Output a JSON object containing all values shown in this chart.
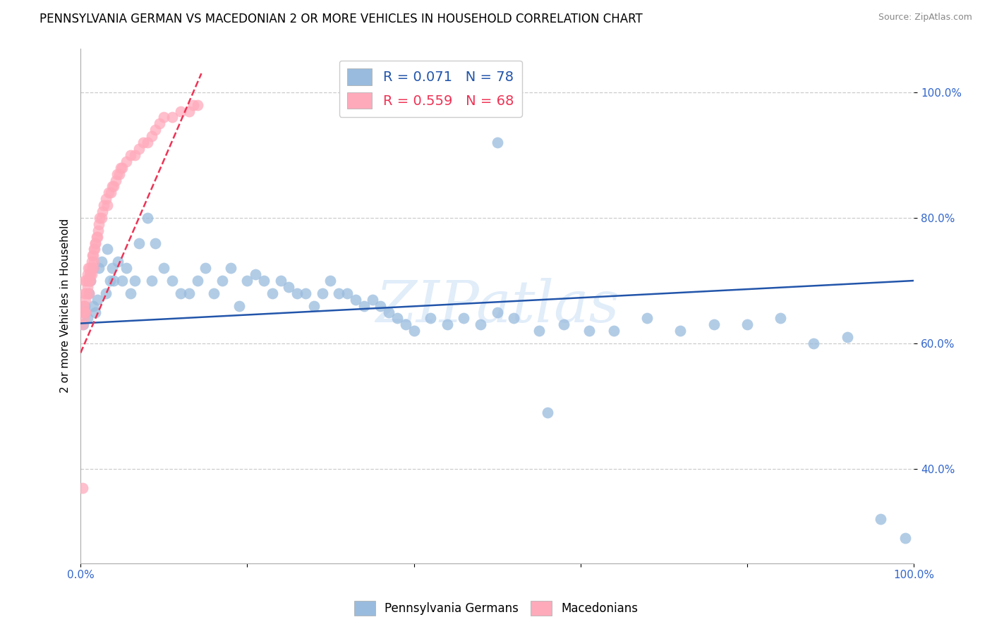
{
  "title": "PENNSYLVANIA GERMAN VS MACEDONIAN 2 OR MORE VEHICLES IN HOUSEHOLD CORRELATION CHART",
  "source": "Source: ZipAtlas.com",
  "ylabel": "2 or more Vehicles in Household",
  "watermark": "ZIPatlas",
  "legend_blue": {
    "R": "0.071",
    "N": "78",
    "label": "Pennsylvania Germans"
  },
  "legend_pink": {
    "R": "0.559",
    "N": "68",
    "label": "Macedonians"
  },
  "xlim": [
    0,
    1.0
  ],
  "ylim": [
    0.25,
    1.07
  ],
  "xticks": [
    0.0,
    0.2,
    0.4,
    0.6,
    0.8,
    1.0
  ],
  "yticks": [
    0.4,
    0.6,
    0.8,
    1.0
  ],
  "xtick_labels": [
    "0.0%",
    "",
    "",
    "",
    "",
    "100.0%"
  ],
  "ytick_labels": [
    "40.0%",
    "60.0%",
    "80.0%",
    "100.0%"
  ],
  "dot_color_blue": "#99BBDD",
  "dot_color_pink": "#FFAABB",
  "line_color_blue": "#2255AA",
  "line_color_pink": "#EE3355",
  "title_fontsize": 12,
  "axis_fontsize": 11,
  "tick_fontsize": 11,
  "blue_scatter_x": [
    0.003,
    0.005,
    0.006,
    0.008,
    0.01,
    0.012,
    0.015,
    0.015,
    0.018,
    0.02,
    0.022,
    0.025,
    0.03,
    0.032,
    0.035,
    0.038,
    0.04,
    0.045,
    0.05,
    0.055,
    0.06,
    0.065,
    0.07,
    0.08,
    0.085,
    0.09,
    0.1,
    0.11,
    0.12,
    0.13,
    0.14,
    0.15,
    0.16,
    0.17,
    0.18,
    0.19,
    0.2,
    0.21,
    0.22,
    0.23,
    0.24,
    0.25,
    0.26,
    0.27,
    0.28,
    0.29,
    0.3,
    0.31,
    0.32,
    0.33,
    0.34,
    0.35,
    0.36,
    0.37,
    0.38,
    0.39,
    0.4,
    0.42,
    0.44,
    0.46,
    0.48,
    0.5,
    0.52,
    0.55,
    0.58,
    0.61,
    0.64,
    0.68,
    0.72,
    0.76,
    0.8,
    0.84,
    0.88,
    0.92,
    0.96,
    0.99,
    0.5,
    0.56
  ],
  "blue_scatter_y": [
    0.63,
    0.66,
    0.65,
    0.64,
    0.68,
    0.7,
    0.72,
    0.66,
    0.65,
    0.67,
    0.72,
    0.73,
    0.68,
    0.75,
    0.7,
    0.72,
    0.7,
    0.73,
    0.7,
    0.72,
    0.68,
    0.7,
    0.76,
    0.8,
    0.7,
    0.76,
    0.72,
    0.7,
    0.68,
    0.68,
    0.7,
    0.72,
    0.68,
    0.7,
    0.72,
    0.66,
    0.7,
    0.71,
    0.7,
    0.68,
    0.7,
    0.69,
    0.68,
    0.68,
    0.66,
    0.68,
    0.7,
    0.68,
    0.68,
    0.67,
    0.66,
    0.67,
    0.66,
    0.65,
    0.64,
    0.63,
    0.62,
    0.64,
    0.63,
    0.64,
    0.63,
    0.65,
    0.64,
    0.62,
    0.63,
    0.62,
    0.62,
    0.64,
    0.62,
    0.63,
    0.63,
    0.64,
    0.6,
    0.61,
    0.32,
    0.29,
    0.92,
    0.49
  ],
  "pink_scatter_x": [
    0.002,
    0.003,
    0.003,
    0.004,
    0.004,
    0.005,
    0.005,
    0.005,
    0.006,
    0.006,
    0.007,
    0.007,
    0.008,
    0.008,
    0.009,
    0.009,
    0.01,
    0.01,
    0.011,
    0.011,
    0.012,
    0.012,
    0.013,
    0.013,
    0.014,
    0.014,
    0.015,
    0.015,
    0.016,
    0.016,
    0.017,
    0.018,
    0.018,
    0.019,
    0.02,
    0.021,
    0.022,
    0.023,
    0.025,
    0.026,
    0.028,
    0.03,
    0.032,
    0.034,
    0.036,
    0.038,
    0.04,
    0.042,
    0.044,
    0.046,
    0.048,
    0.05,
    0.055,
    0.06,
    0.065,
    0.07,
    0.075,
    0.08,
    0.085,
    0.09,
    0.095,
    0.1,
    0.11,
    0.12,
    0.13,
    0.135,
    0.14,
    0.002
  ],
  "pink_scatter_y": [
    0.63,
    0.65,
    0.66,
    0.64,
    0.66,
    0.65,
    0.68,
    0.7,
    0.65,
    0.67,
    0.68,
    0.7,
    0.69,
    0.71,
    0.7,
    0.72,
    0.68,
    0.7,
    0.71,
    0.72,
    0.7,
    0.71,
    0.71,
    0.73,
    0.72,
    0.74,
    0.72,
    0.74,
    0.73,
    0.75,
    0.75,
    0.76,
    0.76,
    0.77,
    0.77,
    0.78,
    0.79,
    0.8,
    0.8,
    0.81,
    0.82,
    0.83,
    0.82,
    0.84,
    0.84,
    0.85,
    0.85,
    0.86,
    0.87,
    0.87,
    0.88,
    0.88,
    0.89,
    0.9,
    0.9,
    0.91,
    0.92,
    0.92,
    0.93,
    0.94,
    0.95,
    0.96,
    0.96,
    0.97,
    0.97,
    0.98,
    0.98,
    0.37
  ]
}
